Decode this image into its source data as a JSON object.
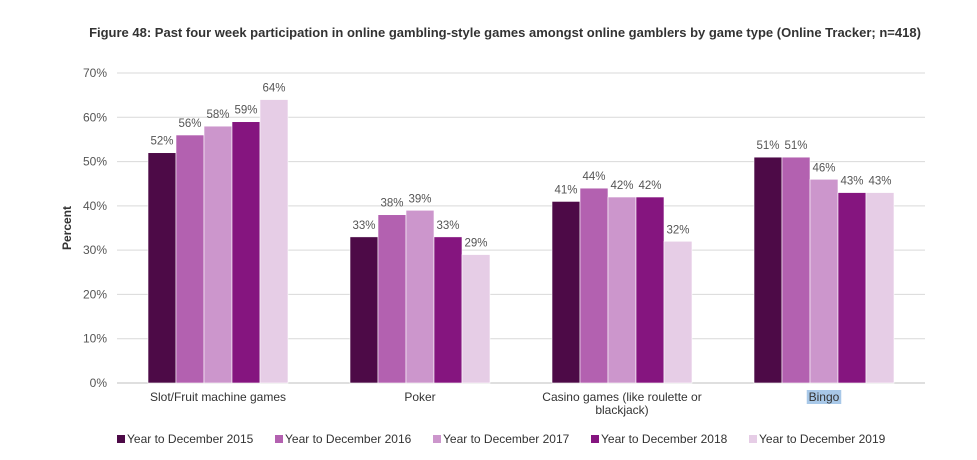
{
  "chart_data": {
    "type": "bar",
    "title": "Figure 48: Past four week participation in online gambling-style games amongst online gamblers by game type (Online Tracker; n=418)",
    "ylabel": "Percent",
    "xlabel": "",
    "ylim": [
      0,
      70
    ],
    "yticks": [
      0,
      10,
      20,
      30,
      40,
      50,
      60,
      70
    ],
    "ytick_labels": [
      "0%",
      "10%",
      "20%",
      "30%",
      "40%",
      "50%",
      "60%",
      "70%"
    ],
    "grid": true,
    "legend_position": "bottom",
    "categories": [
      [
        "Slot/Fruit machine games"
      ],
      [
        "Poker"
      ],
      [
        "Casino games (like roulette or",
        "blackjack)"
      ],
      [
        "Bingo"
      ]
    ],
    "series": [
      {
        "name": "Year to December 2015",
        "color": "#4d0a47",
        "values": [
          52,
          33,
          41,
          51
        ],
        "labels": [
          "52%",
          "33%",
          "41%",
          "51%"
        ]
      },
      {
        "name": "Year to December 2016",
        "color": "#b361b0",
        "values": [
          56,
          38,
          44,
          51
        ],
        "labels": [
          "56%",
          "38%",
          "44%",
          "51%"
        ]
      },
      {
        "name": "Year to December 2017",
        "color": "#cc96cc",
        "values": [
          58,
          39,
          42,
          46
        ],
        "labels": [
          "58%",
          "39%",
          "42%",
          "46%"
        ]
      },
      {
        "name": "Year to December 2018",
        "color": "#85157f",
        "values": [
          59,
          33,
          42,
          43
        ],
        "labels": [
          "59%",
          "33%",
          "42%",
          "43%"
        ]
      },
      {
        "name": "Year to December 2019",
        "color": "#e6cde6",
        "values": [
          64,
          29,
          32,
          43
        ],
        "labels": [
          "64%",
          "29%",
          "32%",
          "43%"
        ]
      }
    ],
    "highlight_category": "Bingo",
    "highlight_color": "#a8c8e8"
  }
}
